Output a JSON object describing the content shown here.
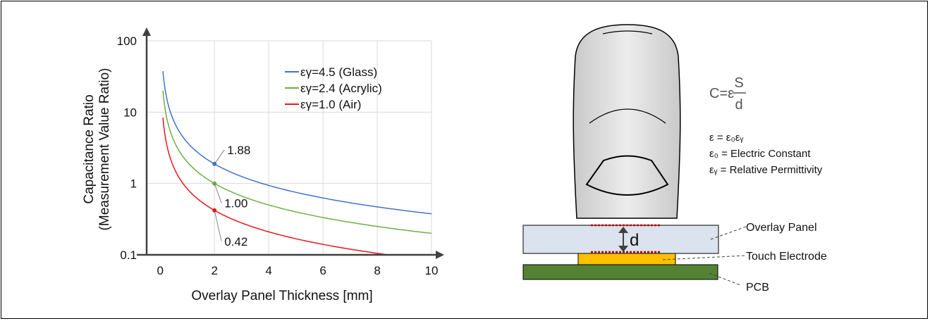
{
  "chart_data": {
    "type": "line",
    "title": "",
    "xlabel": "Overlay Panel Thickness [mm]",
    "ylabel": "Capacitance Ratio",
    "ylabel2": "(Measurement Value Ratio)",
    "yscale": "log",
    "xlim": [
      -0.5,
      10
    ],
    "ylim": [
      0.1,
      100
    ],
    "x_ticks": [
      0,
      2,
      4,
      6,
      8,
      10
    ],
    "x_tick_labels": [
      "0",
      "2",
      "4",
      "6",
      "8",
      "10"
    ],
    "y_ticks": [
      0.1,
      1,
      10,
      100
    ],
    "y_tick_labels": [
      "0.1",
      "1",
      "10",
      "100"
    ],
    "grid": "vertical",
    "legend_position": "top-right",
    "series": [
      {
        "name": "εγ=4.5 (Glass)",
        "color": "#4472C4",
        "x": [
          0.1,
          0.3,
          0.5,
          1,
          1.5,
          2,
          3,
          4,
          6,
          8,
          10
        ],
        "y": [
          37.6,
          12.5,
          7.5,
          3.76,
          2.5,
          1.88,
          1.25,
          0.94,
          0.63,
          0.47,
          0.38
        ]
      },
      {
        "name": "εγ=2.4 (Acrylic)",
        "color": "#70AD47",
        "x": [
          0.1,
          0.3,
          0.5,
          1,
          1.5,
          2,
          3,
          4,
          6,
          8,
          10
        ],
        "y": [
          20,
          6.67,
          4.0,
          2.0,
          1.33,
          1.0,
          0.67,
          0.5,
          0.33,
          0.25,
          0.2
        ]
      },
      {
        "name": "εγ=1.0 (Air)",
        "color": "#E8171C",
        "x": [
          0.1,
          0.3,
          0.5,
          1,
          1.5,
          2,
          3,
          4,
          6,
          8,
          10
        ],
        "y": [
          8.4,
          2.8,
          1.68,
          0.84,
          0.56,
          0.42,
          0.28,
          0.21,
          0.14,
          0.105,
          0.084
        ]
      }
    ],
    "annotations": [
      {
        "text": "1.88",
        "x": 2,
        "y": 1.88,
        "series": 0
      },
      {
        "text": "1.00",
        "x": 2,
        "y": 1.0,
        "series": 1
      },
      {
        "text": "0.42",
        "x": 2,
        "y": 0.42,
        "series": 2
      }
    ]
  },
  "diagram": {
    "formula": {
      "lhs": "C=ε",
      "numerator": "S",
      "denominator": "d"
    },
    "definitions": [
      "ε = ε₀εᵧ",
      "ε₀ = Electric Constant",
      "εᵧ = Relative Permittivity"
    ],
    "gap_label": "d",
    "labels": {
      "overlay": "Overlay Panel",
      "electrode": "Touch Electrode",
      "pcb": "PCB"
    },
    "colors": {
      "overlay": "#DAE3EE",
      "electrode": "#FFC000",
      "pcb": "#548235",
      "finger": "#DCDCDC",
      "dots": "#C00000"
    }
  }
}
